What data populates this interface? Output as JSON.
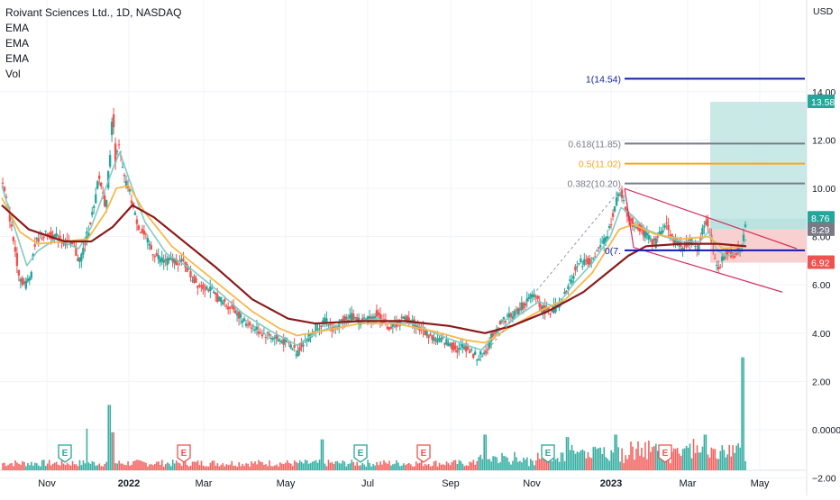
{
  "legend": {
    "title": "Roivant Sciences Ltd., 1D, NASDAQ",
    "ema1": "EMA",
    "ema2": "EMA",
    "ema3": "EMA",
    "vol": "Vol"
  },
  "currency": "USD",
  "colors": {
    "up": "#26a69a",
    "down": "#ef5350",
    "ema_fast": "#80cbc4",
    "ema_mid": "#f7b84b",
    "ema_slow": "#8b1a1a",
    "fib_blue": "#0d1fa8",
    "fib_grey": "#787b86",
    "fib_orange": "#f5a623",
    "trend": "#d32f5f",
    "target_zone": "#b2dfdb",
    "stop_zone": "#f8c8c8",
    "grid": "#f0f3fa"
  },
  "chart_data": {
    "type": "candlestick",
    "y_axis": {
      "ticks": [
        "14.00",
        "12.00",
        "10.00",
        "8.00",
        "6.00",
        "4.00",
        "2.00"
      ],
      "tick_values": [
        14,
        12,
        10,
        8,
        6,
        4,
        2
      ],
      "range": [
        -4.2,
        15.8
      ]
    },
    "volume_axis": {
      "ticks": [
        "0.0000",
        "−2.00"
      ],
      "tick_values": [
        0,
        -2
      ]
    },
    "x_axis": {
      "labels": [
        "Nov",
        "2022",
        "Mar",
        "May",
        "Jul",
        "Sep",
        "Nov",
        "2023",
        "Mar",
        "May"
      ],
      "bold": [
        false,
        true,
        false,
        false,
        false,
        false,
        false,
        true,
        false,
        false
      ]
    },
    "price_badges": [
      {
        "label": "13.58",
        "value": 13.58,
        "color": "#26a69a"
      },
      {
        "label": "8.76",
        "value": 8.76,
        "color": "#26a69a"
      },
      {
        "label": "8.29",
        "value": 8.29,
        "color": "#787b86"
      },
      {
        "label": "6.92",
        "value": 6.92,
        "color": "#ef5350"
      }
    ],
    "fib_levels": [
      {
        "label": "1(14.54)",
        "value": 14.54,
        "color": "#0d1fa8"
      },
      {
        "label": "0.618(11.85)",
        "value": 11.85,
        "color": "#787b86"
      },
      {
        "label": "0.5(11.02)",
        "value": 11.02,
        "color": "#f5a623"
      },
      {
        "label": "0.382(10.20)",
        "value": 10.2,
        "color": "#787b86"
      },
      {
        "label": "0(7.",
        "value": 7.43,
        "color": "#0d1fa8"
      }
    ],
    "markers": [
      {
        "label": "E",
        "kind": "earnings-positive"
      },
      {
        "label": "E",
        "kind": "earnings-negative"
      },
      {
        "label": "E",
        "kind": "earnings-positive"
      },
      {
        "label": "E",
        "kind": "earnings-negative"
      },
      {
        "label": "E",
        "kind": "earnings-positive"
      },
      {
        "label": "E",
        "kind": "earnings-negative"
      }
    ],
    "close_keypoints": [
      [
        0,
        10.3
      ],
      [
        8,
        9.0
      ],
      [
        14,
        7.6
      ],
      [
        20,
        6.3
      ],
      [
        26,
        6.0
      ],
      [
        32,
        6.4
      ],
      [
        36,
        7.6
      ],
      [
        42,
        8.0
      ],
      [
        50,
        8.1
      ],
      [
        60,
        8.0
      ],
      [
        70,
        7.8
      ],
      [
        80,
        7.6
      ],
      [
        86,
        7.0
      ],
      [
        90,
        7.3
      ],
      [
        96,
        8.2
      ],
      [
        100,
        8.8
      ],
      [
        104,
        9.3
      ],
      [
        108,
        10.5
      ],
      [
        112,
        10.0
      ],
      [
        116,
        9.2
      ],
      [
        120,
        11.0
      ],
      [
        124,
        13.2
      ],
      [
        127,
        11.2
      ],
      [
        130,
        11.9
      ],
      [
        134,
        11.0
      ],
      [
        138,
        10.2
      ],
      [
        142,
        10.0
      ],
      [
        148,
        9.0
      ],
      [
        154,
        8.3
      ],
      [
        160,
        8.0
      ],
      [
        168,
        7.4
      ],
      [
        176,
        7.1
      ],
      [
        184,
        7.0
      ],
      [
        194,
        7.0
      ],
      [
        204,
        6.9
      ],
      [
        212,
        6.3
      ],
      [
        220,
        6.0
      ],
      [
        230,
        5.9
      ],
      [
        240,
        5.5
      ],
      [
        250,
        5.2
      ],
      [
        260,
        5.0
      ],
      [
        270,
        4.5
      ],
      [
        280,
        4.3
      ],
      [
        290,
        4.0
      ],
      [
        300,
        3.9
      ],
      [
        310,
        3.7
      ],
      [
        320,
        3.6
      ],
      [
        330,
        3.2
      ],
      [
        336,
        3.6
      ],
      [
        344,
        3.9
      ],
      [
        352,
        4.3
      ],
      [
        362,
        4.5
      ],
      [
        372,
        4.1
      ],
      [
        382,
        4.6
      ],
      [
        392,
        4.7
      ],
      [
        400,
        4.5
      ],
      [
        410,
        4.6
      ],
      [
        418,
        4.8
      ],
      [
        426,
        4.5
      ],
      [
        434,
        4.2
      ],
      [
        442,
        4.4
      ],
      [
        450,
        4.6
      ],
      [
        458,
        4.5
      ],
      [
        466,
        4.2
      ],
      [
        474,
        4.0
      ],
      [
        482,
        3.8
      ],
      [
        490,
        3.7
      ],
      [
        500,
        3.6
      ],
      [
        508,
        3.3
      ],
      [
        516,
        3.5
      ],
      [
        524,
        3.2
      ],
      [
        532,
        3.0
      ],
      [
        540,
        3.2
      ],
      [
        548,
        3.9
      ],
      [
        556,
        4.4
      ],
      [
        566,
        4.7
      ],
      [
        576,
        4.9
      ],
      [
        586,
        5.3
      ],
      [
        596,
        5.6
      ],
      [
        604,
        5.0
      ],
      [
        612,
        4.9
      ],
      [
        620,
        5.1
      ],
      [
        626,
        5.3
      ],
      [
        634,
        6.0
      ],
      [
        640,
        6.6
      ],
      [
        646,
        6.9
      ],
      [
        652,
        7.0
      ],
      [
        660,
        6.9
      ],
      [
        668,
        7.6
      ],
      [
        676,
        7.9
      ],
      [
        682,
        8.8
      ],
      [
        688,
        9.6
      ],
      [
        692,
        9.9
      ],
      [
        696,
        9.2
      ],
      [
        700,
        8.8
      ],
      [
        706,
        8.5
      ],
      [
        712,
        8.4
      ],
      [
        718,
        8.1
      ],
      [
        724,
        7.9
      ],
      [
        730,
        7.7
      ],
      [
        736,
        8.2
      ],
      [
        742,
        8.6
      ],
      [
        748,
        8.0
      ],
      [
        754,
        7.7
      ],
      [
        760,
        7.6
      ],
      [
        766,
        7.7
      ],
      [
        772,
        7.8
      ],
      [
        778,
        7.5
      ],
      [
        784,
        8.4
      ],
      [
        788,
        8.6
      ],
      [
        792,
        8.0
      ],
      [
        796,
        7.2
      ],
      [
        800,
        6.7
      ],
      [
        806,
        7.1
      ],
      [
        812,
        7.3
      ],
      [
        818,
        7.2
      ],
      [
        824,
        7.5
      ],
      [
        828,
        7.7
      ],
      [
        832,
        8.76
      ]
    ],
    "ema_fast_keypoints": [
      [
        0,
        10.1
      ],
      [
        14,
        8.4
      ],
      [
        28,
        6.8
      ],
      [
        40,
        7.4
      ],
      [
        60,
        7.9
      ],
      [
        86,
        7.5
      ],
      [
        100,
        8.4
      ],
      [
        112,
        9.6
      ],
      [
        124,
        10.8
      ],
      [
        132,
        11.5
      ],
      [
        142,
        10.4
      ],
      [
        160,
        8.6
      ],
      [
        184,
        7.3
      ],
      [
        210,
        6.7
      ],
      [
        240,
        5.8
      ],
      [
        270,
        4.8
      ],
      [
        300,
        4.1
      ],
      [
        330,
        3.5
      ],
      [
        350,
        4.0
      ],
      [
        380,
        4.4
      ],
      [
        400,
        4.5
      ],
      [
        420,
        4.6
      ],
      [
        440,
        4.4
      ],
      [
        460,
        4.4
      ],
      [
        490,
        3.9
      ],
      [
        520,
        3.5
      ],
      [
        536,
        3.3
      ],
      [
        556,
        4.1
      ],
      [
        580,
        4.8
      ],
      [
        600,
        5.3
      ],
      [
        620,
        5.1
      ],
      [
        640,
        6.1
      ],
      [
        660,
        6.9
      ],
      [
        680,
        8.0
      ],
      [
        692,
        9.2
      ],
      [
        704,
        8.9
      ],
      [
        720,
        8.3
      ],
      [
        740,
        8.0
      ],
      [
        760,
        7.8
      ],
      [
        780,
        7.8
      ],
      [
        790,
        8.2
      ],
      [
        800,
        7.4
      ],
      [
        812,
        7.2
      ],
      [
        824,
        7.4
      ],
      [
        832,
        7.9
      ]
    ],
    "ema_mid_keypoints": [
      [
        0,
        9.6
      ],
      [
        20,
        8.2
      ],
      [
        40,
        7.7
      ],
      [
        70,
        7.8
      ],
      [
        96,
        7.9
      ],
      [
        116,
        9.0
      ],
      [
        128,
        10.0
      ],
      [
        142,
        10.1
      ],
      [
        160,
        9.0
      ],
      [
        190,
        7.6
      ],
      [
        220,
        6.7
      ],
      [
        250,
        5.8
      ],
      [
        280,
        4.9
      ],
      [
        310,
        4.2
      ],
      [
        330,
        3.9
      ],
      [
        360,
        4.1
      ],
      [
        400,
        4.4
      ],
      [
        440,
        4.4
      ],
      [
        480,
        4.1
      ],
      [
        520,
        3.7
      ],
      [
        540,
        3.6
      ],
      [
        566,
        4.2
      ],
      [
        600,
        4.9
      ],
      [
        630,
        5.4
      ],
      [
        660,
        6.5
      ],
      [
        690,
        8.3
      ],
      [
        706,
        8.5
      ],
      [
        730,
        8.1
      ],
      [
        760,
        7.9
      ],
      [
        790,
        8.0
      ],
      [
        806,
        7.5
      ],
      [
        832,
        7.6
      ]
    ],
    "ema_slow_keypoints": [
      [
        0,
        9.3
      ],
      [
        30,
        8.3
      ],
      [
        70,
        7.8
      ],
      [
        100,
        7.8
      ],
      [
        124,
        8.4
      ],
      [
        146,
        9.3
      ],
      [
        170,
        8.8
      ],
      [
        200,
        7.9
      ],
      [
        240,
        6.7
      ],
      [
        280,
        5.4
      ],
      [
        320,
        4.6
      ],
      [
        350,
        4.4
      ],
      [
        400,
        4.5
      ],
      [
        450,
        4.5
      ],
      [
        500,
        4.3
      ],
      [
        540,
        4.0
      ],
      [
        570,
        4.3
      ],
      [
        610,
        4.9
      ],
      [
        650,
        5.7
      ],
      [
        680,
        6.6
      ],
      [
        700,
        7.2
      ],
      [
        720,
        7.6
      ],
      [
        760,
        7.7
      ],
      [
        800,
        7.7
      ],
      [
        832,
        7.6
      ]
    ],
    "volume_spikes": [
      [
        95,
        0.35
      ],
      [
        120,
        0.55
      ],
      [
        124,
        0.32
      ],
      [
        358,
        0.26
      ],
      [
        540,
        0.3
      ],
      [
        632,
        0.28
      ],
      [
        686,
        0.3
      ],
      [
        786,
        0.3
      ],
      [
        796,
        0.18
      ],
      [
        828,
        0.95
      ]
    ]
  }
}
